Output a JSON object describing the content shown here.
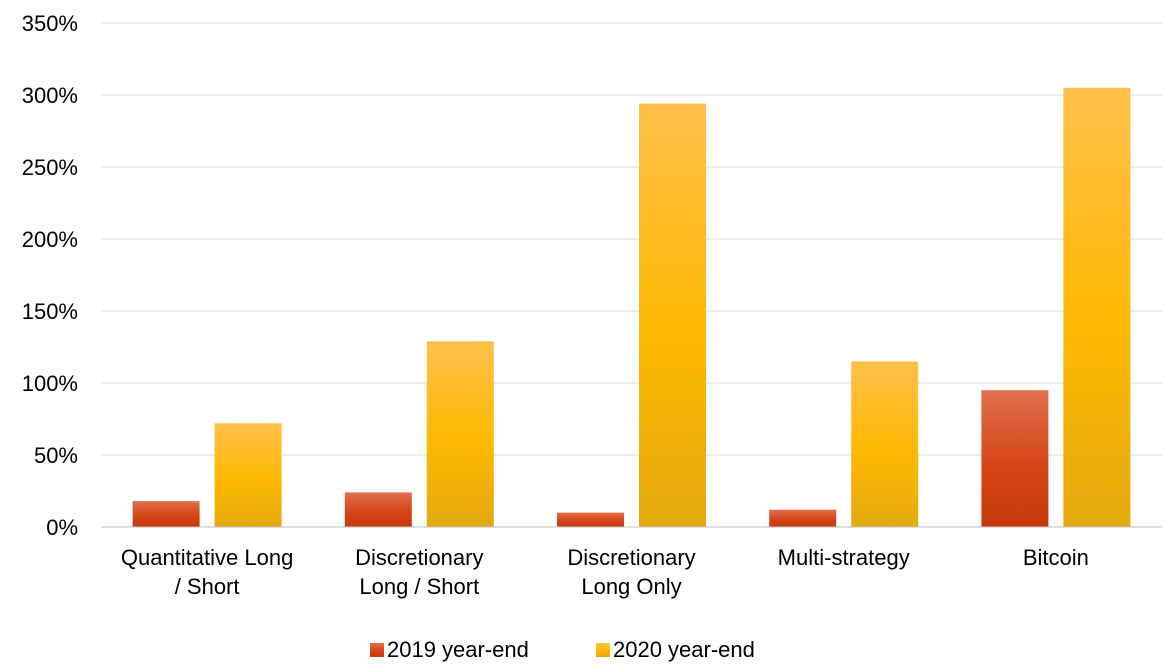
{
  "chart_data": {
    "type": "bar",
    "categories": [
      [
        "Quantitative Long",
        "/ Short"
      ],
      [
        "Discretionary",
        "Long / Short"
      ],
      [
        "Discretionary",
        "Long Only"
      ],
      [
        "Multi-strategy"
      ],
      [
        "Bitcoin"
      ]
    ],
    "series": [
      {
        "name": "2019 year-end",
        "values": [
          18,
          24,
          10,
          12,
          95
        ],
        "color": "#d9461a"
      },
      {
        "name": "2020 year-end",
        "values": [
          72,
          129,
          294,
          115,
          305
        ],
        "color": "#ffb81c"
      }
    ],
    "ylim": [
      0,
      350
    ],
    "yticks": [
      0,
      50,
      100,
      150,
      200,
      250,
      300,
      350
    ],
    "ytick_format": "percent",
    "grid": true,
    "legend_position": "bottom",
    "title": "",
    "xlabel": "",
    "ylabel": ""
  }
}
